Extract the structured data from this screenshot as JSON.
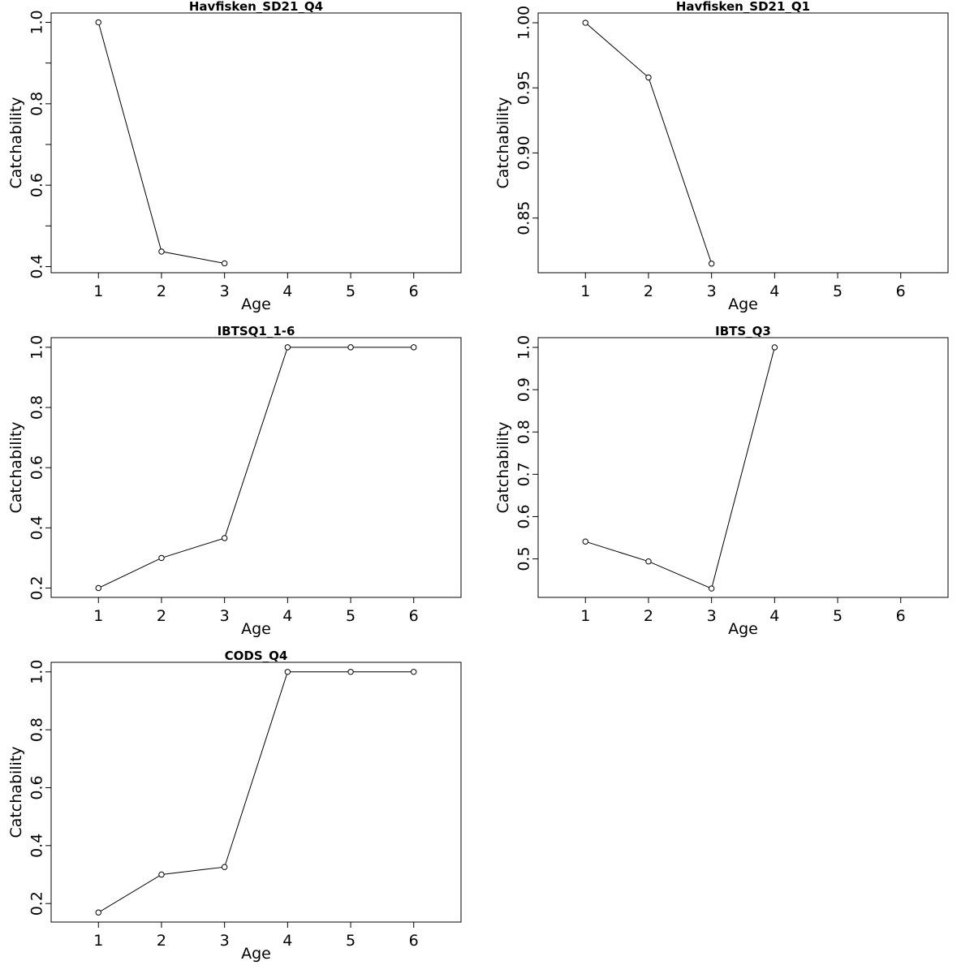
{
  "chart_data": [
    {
      "type": "line",
      "title": "Havfisken_SD21_Q4",
      "xlabel": "Age",
      "ylabel": "Catchability",
      "x": [
        1,
        2,
        3
      ],
      "y": [
        1.0,
        0.437,
        0.408
      ],
      "xlim": [
        0.25,
        6.75
      ],
      "xticks": [
        1,
        2,
        3,
        4,
        5,
        6
      ],
      "ylim": [
        0.385,
        1.023
      ],
      "yticks": [
        0.4,
        0.6,
        0.8,
        1.0
      ],
      "yticks_minor": [
        0.5,
        0.7,
        0.9
      ],
      "ytick_labels": [
        "0.4",
        "0.6",
        "0.8",
        "1.0"
      ]
    },
    {
      "type": "line",
      "title": "Havfisken_SD21_Q1",
      "xlabel": "Age",
      "ylabel": "Catchability",
      "x": [
        1,
        2,
        3
      ],
      "y": [
        1.0,
        0.958,
        0.815
      ],
      "xlim": [
        0.25,
        6.75
      ],
      "xticks": [
        1,
        2,
        3,
        4,
        5,
        6
      ],
      "ylim": [
        0.808,
        1.0075
      ],
      "yticks": [
        0.85,
        0.9,
        0.95,
        1.0
      ],
      "ytick_labels": [
        "0.85",
        "0.90",
        "0.95",
        "1.00"
      ]
    },
    {
      "type": "line",
      "title": "IBTSQ1_1-6",
      "xlabel": "Age",
      "ylabel": "Catchability",
      "x": [
        1,
        2,
        3,
        4,
        5,
        6
      ],
      "y": [
        0.2,
        0.3,
        0.366,
        1.0,
        1.0,
        1.0
      ],
      "xlim": [
        0.25,
        6.75
      ],
      "xticks": [
        1,
        2,
        3,
        4,
        5,
        6
      ],
      "ylim": [
        0.169,
        1.032
      ],
      "yticks": [
        0.2,
        0.4,
        0.6,
        0.8,
        1.0
      ],
      "ytick_labels": [
        "0.2",
        "0.4",
        "0.6",
        "0.8",
        "1.0"
      ]
    },
    {
      "type": "line",
      "title": "IBTS_Q3",
      "xlabel": "Age",
      "ylabel": "Catchability",
      "x": [
        1,
        2,
        3,
        4
      ],
      "y": [
        0.541,
        0.494,
        0.43,
        1.0
      ],
      "xlim": [
        0.25,
        6.75
      ],
      "xticks": [
        1,
        2,
        3,
        4,
        5,
        6
      ],
      "ylim": [
        0.409,
        1.023
      ],
      "yticks": [
        0.5,
        0.6,
        0.7,
        0.8,
        0.9,
        1.0
      ],
      "ytick_labels": [
        "0.5",
        "0.6",
        "0.7",
        "0.8",
        "0.9",
        "1.0"
      ]
    },
    {
      "type": "line",
      "title": "CODS_Q4",
      "xlabel": "Age",
      "ylabel": "Catchability",
      "x": [
        1,
        2,
        3,
        4,
        5,
        6
      ],
      "y": [
        0.169,
        0.3,
        0.326,
        1.0,
        1.0,
        1.0
      ],
      "xlim": [
        0.25,
        6.75
      ],
      "xticks": [
        1,
        2,
        3,
        4,
        5,
        6
      ],
      "ylim": [
        0.136,
        1.033
      ],
      "yticks": [
        0.2,
        0.4,
        0.6,
        0.8,
        1.0
      ],
      "ytick_labels": [
        "0.2",
        "0.4",
        "0.6",
        "0.8",
        "1.0"
      ]
    }
  ]
}
